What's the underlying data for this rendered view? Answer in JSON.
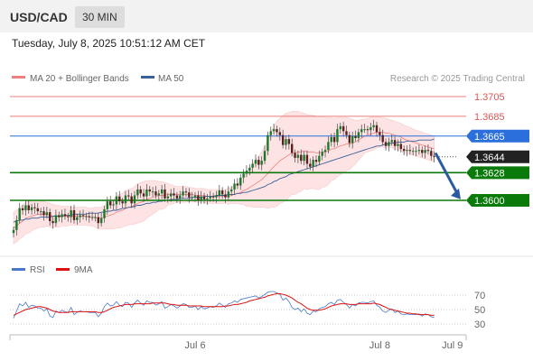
{
  "header": {
    "symbol": "USD/CAD",
    "timeframe": "30 MIN"
  },
  "subtitle": "Tuesday, July 8, 2025 10:51:12 AM CET",
  "credit": "Research © 2025 Trading Central",
  "colors": {
    "ma20": "#f08080",
    "ma50": "#3a5f9a",
    "resistance": "#e05555",
    "pivot_line": "#2a6fdb",
    "support": "#0a7a0a",
    "current": "#222222",
    "arrow": "#2a5aa0",
    "rsi": "#4a78c8",
    "rsi_ma": "#dd1111"
  },
  "chart_data": [
    {
      "type": "candlestick",
      "legend": [
        {
          "name": "MA 20 + Bollinger Bands",
          "color": "#f08080"
        },
        {
          "name": "MA 50",
          "color": "#3a5f9a"
        }
      ],
      "ylim": [
        1.3568,
        1.3718
      ],
      "x_ticks": [
        {
          "label": "Jul 6",
          "index": 60
        },
        {
          "label": "Jul 8",
          "index": 121
        },
        {
          "label": "Jul 9",
          "index": 145
        }
      ],
      "levels": [
        {
          "label": "1.3705",
          "value": 1.3705,
          "kind": "resistance"
        },
        {
          "label": "1.3685",
          "value": 1.3685,
          "kind": "resistance"
        },
        {
          "label": "1.3665",
          "value": 1.3665,
          "kind": "pivot"
        },
        {
          "label": "1.3644",
          "value": 1.3644,
          "kind": "current"
        },
        {
          "label": "1.3628",
          "value": 1.3628,
          "kind": "support"
        },
        {
          "label": "1.3600",
          "value": 1.36,
          "kind": "support"
        }
      ],
      "forecast_arrow": {
        "from": 1.3648,
        "to": 1.3601,
        "direction": "down"
      },
      "close": [
        1.357,
        1.358,
        1.3592,
        1.359,
        1.3595,
        1.359,
        1.3593,
        1.3592,
        1.3589,
        1.3589,
        1.3585,
        1.3588,
        1.3579,
        1.3577,
        1.3585,
        1.3583,
        1.3586,
        1.3584,
        1.3583,
        1.359,
        1.358,
        1.3583,
        1.3585,
        1.3584,
        1.3584,
        1.3583,
        1.3583,
        1.3583,
        1.3577,
        1.3582,
        1.3591,
        1.3599,
        1.3595,
        1.3596,
        1.3604,
        1.3599,
        1.3597,
        1.3605,
        1.3604,
        1.3597,
        1.3605,
        1.3611,
        1.3607,
        1.3604,
        1.3611,
        1.3609,
        1.3609,
        1.3605,
        1.3607,
        1.3611,
        1.3602,
        1.3604,
        1.3607,
        1.3605,
        1.3602,
        1.3605,
        1.3609,
        1.3608,
        1.3603,
        1.3603,
        1.3605,
        1.36,
        1.3604,
        1.3601,
        1.3602,
        1.3604,
        1.3603,
        1.3605,
        1.361,
        1.3606,
        1.3603,
        1.3609,
        1.3611,
        1.3617,
        1.3615,
        1.3623,
        1.3627,
        1.363,
        1.3633,
        1.3637,
        1.3641,
        1.3636,
        1.364,
        1.365,
        1.3666,
        1.367,
        1.3672,
        1.3669,
        1.3666,
        1.3656,
        1.3662,
        1.3657,
        1.3648,
        1.3643,
        1.3646,
        1.364,
        1.3646,
        1.3637,
        1.3634,
        1.3641,
        1.3639,
        1.3645,
        1.3649,
        1.3651,
        1.3659,
        1.3664,
        1.3659,
        1.3672,
        1.3675,
        1.367,
        1.3666,
        1.3658,
        1.3665,
        1.3663,
        1.3669,
        1.3672,
        1.3672,
        1.3671,
        1.3674,
        1.3676,
        1.3669,
        1.3666,
        1.3659,
        1.3655,
        1.3659,
        1.3661,
        1.3655,
        1.3657,
        1.3652,
        1.365,
        1.3651,
        1.365,
        1.365,
        1.365,
        1.3651,
        1.3648,
        1.3651,
        1.365,
        1.3645,
        1.3644
      ],
      "ma20": [
        1.3572,
        1.3574,
        1.3577,
        1.3579,
        1.3582,
        1.3583,
        1.3584,
        1.3585,
        1.3586,
        1.3586,
        1.3586,
        1.3586,
        1.3585,
        1.3584,
        1.3584,
        1.3584,
        1.3584,
        1.3584,
        1.3584,
        1.3584,
        1.3584,
        1.3584,
        1.3584,
        1.3584,
        1.3584,
        1.3583,
        1.3583,
        1.3583,
        1.3582,
        1.3582,
        1.3583,
        1.3584,
        1.3585,
        1.3586,
        1.3588,
        1.3589,
        1.359,
        1.3592,
        1.3593,
        1.3594,
        1.3595,
        1.3597,
        1.3598,
        1.3599,
        1.3601,
        1.3602,
        1.3603,
        1.3604,
        1.3605,
        1.3605,
        1.3605,
        1.3606,
        1.3606,
        1.3606,
        1.3606,
        1.3606,
        1.3606,
        1.3606,
        1.3606,
        1.3606,
        1.3605,
        1.3605,
        1.3605,
        1.3605,
        1.3604,
        1.3604,
        1.3604,
        1.3604,
        1.3604,
        1.3604,
        1.3604,
        1.3604,
        1.3605,
        1.3606,
        1.3607,
        1.3608,
        1.361,
        1.3611,
        1.3613,
        1.3615,
        1.3617,
        1.3619,
        1.3621,
        1.3624,
        1.3627,
        1.3631,
        1.3634,
        1.3637,
        1.364,
        1.3642,
        1.3644,
        1.3646,
        1.3648,
        1.3648,
        1.3649,
        1.3649,
        1.365,
        1.3649,
        1.3649,
        1.3649,
        1.3648,
        1.3648,
        1.3649,
        1.3649,
        1.365,
        1.3652,
        1.3652,
        1.3654,
        1.3655,
        1.3656,
        1.3657,
        1.3657,
        1.3658,
        1.3659,
        1.3661,
        1.3663,
        1.3665,
        1.3666,
        1.3667,
        1.3668,
        1.3669,
        1.3669,
        1.3669,
        1.3668,
        1.3668,
        1.3667,
        1.3666,
        1.3665,
        1.3664,
        1.3662,
        1.3661,
        1.366,
        1.3659,
        1.3658,
        1.3657,
        1.3656,
        1.3655,
        1.3654,
        1.3653,
        1.3652
      ],
      "upper_band": [
        1.3588,
        1.359,
        1.3593,
        1.3595,
        1.3598,
        1.3599,
        1.3599,
        1.3599,
        1.36,
        1.3599,
        1.3599,
        1.3598,
        1.3597,
        1.3596,
        1.3595,
        1.3595,
        1.3594,
        1.3594,
        1.3594,
        1.3593,
        1.3593,
        1.3593,
        1.3593,
        1.3593,
        1.3593,
        1.3592,
        1.3592,
        1.3593,
        1.3593,
        1.3593,
        1.3595,
        1.3597,
        1.3599,
        1.3601,
        1.3604,
        1.3606,
        1.3607,
        1.361,
        1.3611,
        1.3612,
        1.3614,
        1.3617,
        1.3618,
        1.3619,
        1.362,
        1.362,
        1.362,
        1.362,
        1.3619,
        1.3619,
        1.3618,
        1.3617,
        1.3616,
        1.3615,
        1.3614,
        1.3614,
        1.3614,
        1.3614,
        1.3613,
        1.3613,
        1.3612,
        1.3612,
        1.3612,
        1.3612,
        1.3611,
        1.3611,
        1.3611,
        1.3611,
        1.3611,
        1.3611,
        1.3611,
        1.3612,
        1.3613,
        1.3615,
        1.3617,
        1.362,
        1.3624,
        1.3628,
        1.3632,
        1.3637,
        1.3641,
        1.3645,
        1.3649,
        1.3655,
        1.3662,
        1.3669,
        1.3675,
        1.368,
        1.3683,
        1.3686,
        1.3688,
        1.3689,
        1.369,
        1.369,
        1.369,
        1.3689,
        1.3688,
        1.3687,
        1.3686,
        1.3686,
        1.3685,
        1.3685,
        1.3685,
        1.3684,
        1.3684,
        1.3684,
        1.3683,
        1.3684,
        1.3684,
        1.3684,
        1.3684,
        1.3683,
        1.3682,
        1.3681,
        1.3681,
        1.3682,
        1.3682,
        1.3683,
        1.3684,
        1.3685,
        1.3685,
        1.3684,
        1.3684,
        1.3683,
        1.3682,
        1.3681,
        1.368,
        1.3679,
        1.3678,
        1.3676,
        1.3675,
        1.3674,
        1.3672,
        1.3671,
        1.367,
        1.3669,
        1.3668,
        1.3667,
        1.3666,
        1.3665
      ],
      "lower_band": [
        1.3556,
        1.3558,
        1.3561,
        1.3563,
        1.3566,
        1.3567,
        1.3569,
        1.3571,
        1.3572,
        1.3573,
        1.3573,
        1.3574,
        1.3573,
        1.3572,
        1.3573,
        1.3573,
        1.3574,
        1.3574,
        1.3574,
        1.3575,
        1.3575,
        1.3575,
        1.3575,
        1.3575,
        1.3575,
        1.3574,
        1.3574,
        1.3573,
        1.3571,
        1.3571,
        1.3571,
        1.3571,
        1.3571,
        1.3571,
        1.3572,
        1.3572,
        1.3573,
        1.3574,
        1.3575,
        1.3576,
        1.3576,
        1.3577,
        1.3578,
        1.3579,
        1.3582,
        1.3584,
        1.3586,
        1.3588,
        1.3591,
        1.3591,
        1.3592,
        1.3595,
        1.3596,
        1.3597,
        1.3598,
        1.3598,
        1.3598,
        1.3598,
        1.3599,
        1.3599,
        1.3598,
        1.3598,
        1.3598,
        1.3598,
        1.3597,
        1.3597,
        1.3597,
        1.3597,
        1.3597,
        1.3597,
        1.3597,
        1.3596,
        1.3597,
        1.3597,
        1.3597,
        1.3596,
        1.3596,
        1.3594,
        1.3594,
        1.3593,
        1.3593,
        1.3593,
        1.3593,
        1.3593,
        1.3592,
        1.3593,
        1.3593,
        1.3594,
        1.3597,
        1.3598,
        1.36,
        1.3603,
        1.3606,
        1.3606,
        1.3608,
        1.3609,
        1.3612,
        1.3611,
        1.3612,
        1.3612,
        1.3611,
        1.3611,
        1.3613,
        1.3614,
        1.3616,
        1.362,
        1.3621,
        1.3624,
        1.3626,
        1.3628,
        1.363,
        1.3631,
        1.3634,
        1.3637,
        1.3641,
        1.3644,
        1.3648,
        1.3649,
        1.365,
        1.3651,
        1.3653,
        1.3654,
        1.3654,
        1.3653,
        1.3654,
        1.3653,
        1.3652,
        1.3651,
        1.365,
        1.3648,
        1.3647,
        1.3646,
        1.3646,
        1.3645,
        1.3644,
        1.3643,
        1.3642,
        1.3641,
        1.364,
        1.3639
      ],
      "ma50": [
        1.3578,
        1.3579,
        1.358,
        1.358,
        1.3581,
        1.3581,
        1.3582,
        1.3582,
        1.3582,
        1.3583,
        1.3583,
        1.3583,
        1.3583,
        1.3584,
        1.3584,
        1.3584,
        1.3584,
        1.3585,
        1.3585,
        1.3585,
        1.3586,
        1.3586,
        1.3586,
        1.3586,
        1.3586,
        1.3587,
        1.3587,
        1.3587,
        1.3587,
        1.3588,
        1.3588,
        1.3589,
        1.3589,
        1.359,
        1.359,
        1.3591,
        1.3592,
        1.3592,
        1.3593,
        1.3593,
        1.3594,
        1.3595,
        1.3595,
        1.3596,
        1.3597,
        1.3597,
        1.3598,
        1.3598,
        1.3599,
        1.3599,
        1.36,
        1.36,
        1.3601,
        1.3601,
        1.3601,
        1.3602,
        1.3602,
        1.3602,
        1.3602,
        1.3603,
        1.3603,
        1.3603,
        1.3603,
        1.3604,
        1.3604,
        1.3604,
        1.3604,
        1.3605,
        1.3605,
        1.3605,
        1.3605,
        1.3606,
        1.3606,
        1.3606,
        1.3607,
        1.3607,
        1.3608,
        1.3608,
        1.3609,
        1.361,
        1.3611,
        1.3612,
        1.3613,
        1.3614,
        1.3616,
        1.3617,
        1.3619,
        1.362,
        1.3622,
        1.3623,
        1.3624,
        1.3626,
        1.3627,
        1.3628,
        1.3629,
        1.363,
        1.3631,
        1.3632,
        1.3633,
        1.3634,
        1.3635,
        1.3636,
        1.3637,
        1.3638,
        1.3639,
        1.364,
        1.3641,
        1.3642,
        1.3643,
        1.3644,
        1.3645,
        1.3646,
        1.3647,
        1.3648,
        1.3649,
        1.365,
        1.3651,
        1.3652,
        1.3653,
        1.3654,
        1.3655,
        1.3655,
        1.3656,
        1.3657,
        1.3657,
        1.3658,
        1.3658,
        1.3659,
        1.3659,
        1.3659,
        1.366,
        1.366,
        1.366,
        1.366,
        1.3661,
        1.3661,
        1.3661,
        1.3661,
        1.3661,
        1.3662
      ]
    },
    {
      "type": "line",
      "legend": [
        {
          "name": "RSI",
          "color": "#4a78c8"
        },
        {
          "name": "9MA",
          "color": "#dd1111"
        }
      ],
      "ylim": [
        20,
        80
      ],
      "y_ticks": [
        70,
        50,
        30
      ],
      "rsi": [
        38,
        48,
        58,
        55,
        60,
        53,
        56,
        55,
        52,
        52,
        48,
        51,
        41,
        39,
        48,
        46,
        49,
        47,
        46,
        53,
        43,
        46,
        48,
        47,
        47,
        46,
        46,
        46,
        40,
        45,
        54,
        59,
        55,
        56,
        61,
        56,
        54,
        60,
        59,
        53,
        59,
        63,
        59,
        56,
        62,
        60,
        60,
        56,
        58,
        61,
        52,
        54,
        57,
        55,
        52,
        55,
        58,
        57,
        53,
        53,
        55,
        50,
        54,
        51,
        52,
        54,
        53,
        55,
        59,
        56,
        53,
        58,
        59,
        62,
        60,
        64,
        65,
        66,
        67,
        68,
        69,
        66,
        68,
        71,
        74,
        75,
        75,
        73,
        71,
        63,
        66,
        61,
        53,
        50,
        52,
        47,
        51,
        45,
        43,
        48,
        47,
        51,
        53,
        54,
        58,
        60,
        57,
        63,
        64,
        60,
        57,
        52,
        57,
        55,
        59,
        60,
        60,
        59,
        61,
        62,
        56,
        53,
        48,
        46,
        49,
        51,
        46,
        48,
        44,
        43,
        44,
        43,
        43,
        43,
        44,
        41,
        44,
        43,
        40,
        39
      ],
      "ma9": [
        42,
        44,
        46,
        48,
        50,
        51,
        52,
        53,
        54,
        54,
        53,
        52,
        50,
        48,
        47,
        46,
        46,
        46,
        46,
        47,
        47,
        47,
        47,
        47,
        47,
        47,
        47,
        47,
        46,
        46,
        47,
        49,
        51,
        53,
        54,
        55,
        56,
        57,
        57,
        57,
        58,
        58,
        58,
        58,
        58,
        58,
        59,
        59,
        59,
        59,
        59,
        58,
        57,
        57,
        56,
        56,
        56,
        56,
        55,
        55,
        55,
        55,
        55,
        54,
        54,
        54,
        54,
        54,
        54,
        54,
        55,
        55,
        56,
        57,
        57,
        58,
        59,
        60,
        62,
        63,
        64,
        65,
        66,
        67,
        69,
        70,
        71,
        72,
        72,
        71,
        70,
        68,
        66,
        63,
        60,
        58,
        55,
        52,
        50,
        49,
        49,
        49,
        50,
        51,
        53,
        55,
        56,
        57,
        58,
        58,
        58,
        57,
        57,
        57,
        58,
        58,
        58,
        58,
        58,
        59,
        58,
        57,
        55,
        53,
        51,
        50,
        49,
        48,
        47,
        46,
        45,
        45,
        44,
        44,
        43,
        43,
        43,
        43,
        42,
        42
      ]
    }
  ]
}
